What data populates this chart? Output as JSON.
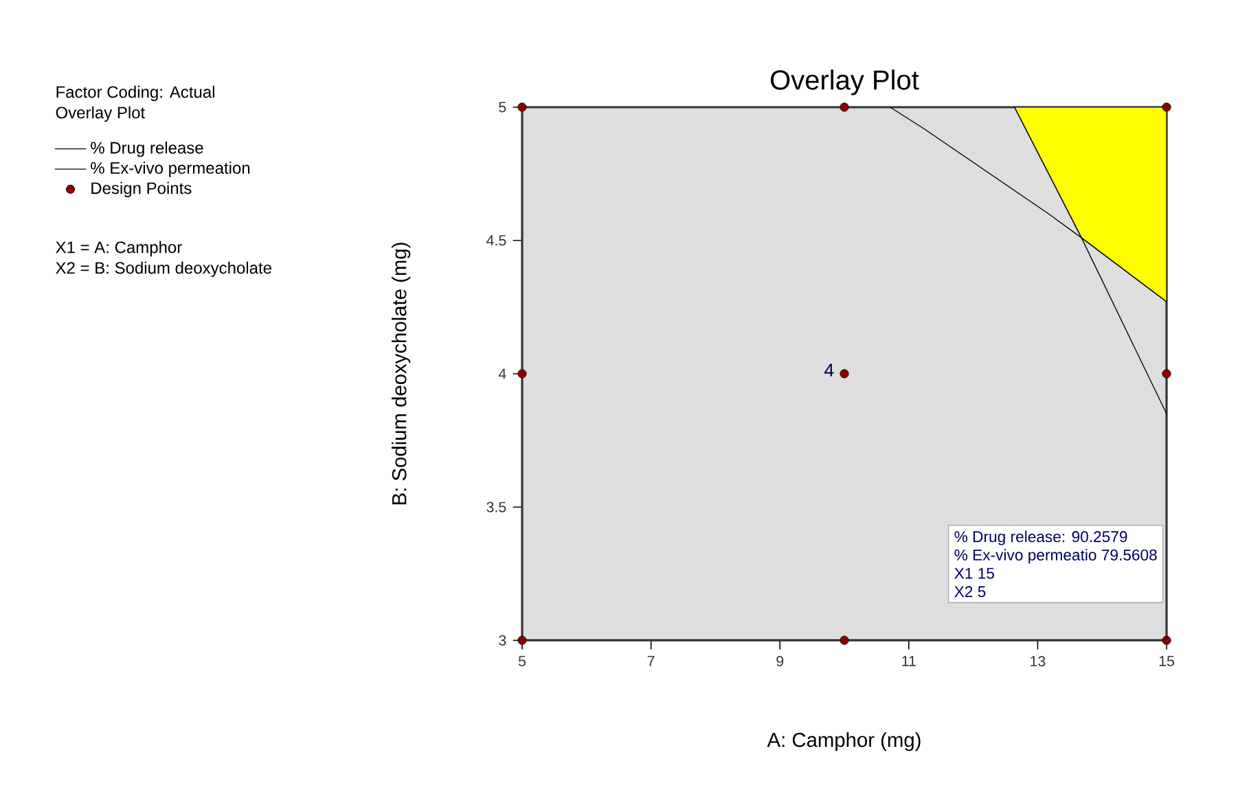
{
  "chart_data": {
    "type": "scatter",
    "title": "Overlay Plot",
    "xlabel": "A: Camphor (mg)",
    "ylabel": "B: Sodium deoxycholate (mg)",
    "xlim": [
      5,
      15
    ],
    "ylim": [
      3,
      5
    ],
    "xticks": [
      5,
      7,
      9,
      11,
      13,
      15
    ],
    "yticks": [
      3,
      3.5,
      4,
      4.5,
      5
    ],
    "legend": "left",
    "series": [
      {
        "type": "area",
        "marker": "none",
        "color": "#ffff00",
        "x": [
          12.64,
          15,
          15,
          13.68
        ],
        "values": [
          5,
          5,
          4.27,
          4.51
        ]
      },
      {
        "type": "line",
        "name": "% Drug release",
        "marker": "none",
        "color": "#000000",
        "x": [
          12.64,
          13.68,
          15
        ],
        "values": [
          5,
          4.51,
          3.85
        ]
      },
      {
        "type": "line",
        "name": "% Ex-vivo permeation",
        "marker": "none",
        "color": "#000000",
        "x": [
          10.71,
          11.23,
          13.17,
          13.68,
          15
        ],
        "values": [
          5,
          4.92,
          4.6,
          4.51,
          4.27
        ]
      },
      {
        "type": "scatter",
        "name": "Design Points",
        "marker": "circle",
        "color": "#8b0000",
        "x": [
          5,
          5,
          5,
          10,
          10,
          10,
          15,
          15,
          15
        ],
        "values": [
          3,
          4,
          5,
          3,
          4,
          5,
          3,
          4,
          5
        ]
      }
    ],
    "annotations": [
      "Factor Coding: Actual",
      "Overlay Plot",
      "X1 = A: Camphor",
      "X2 = B: Sodium deoxycholate",
      {
        "text": "4",
        "x": 10,
        "y": 4
      },
      "% Drug release:  90.2579",
      "% Ex-vivo permeatio  79.5608",
      "X1  15",
      "X2  5"
    ]
  }
}
